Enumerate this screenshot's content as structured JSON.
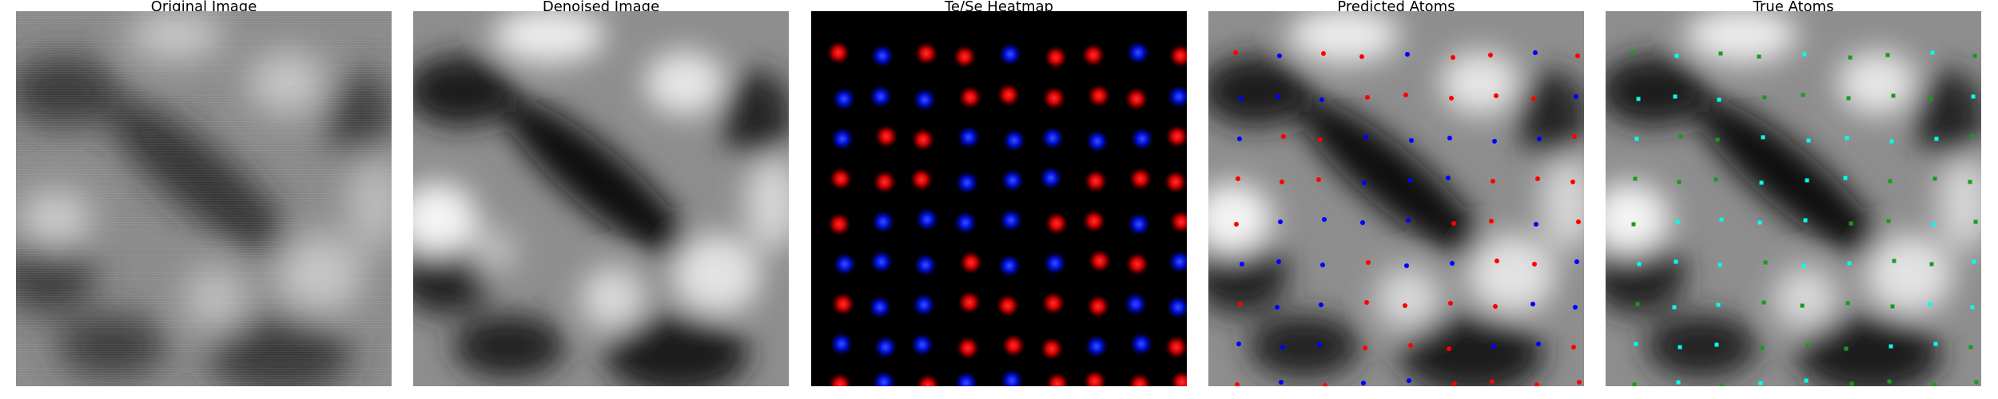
{
  "panels": [
    {
      "title": "Original Image"
    },
    {
      "title": "Denoised Image"
    },
    {
      "title": "Te/Se Heatmap"
    },
    {
      "title": "Predicted Atoms"
    },
    {
      "title": "True Atoms"
    }
  ],
  "colors": {
    "te": "#e60000",
    "se": "#0010f0",
    "pred_te": "#ff0000",
    "pred_se": "#0000ff",
    "true_te": "#00ffee",
    "true_se": "#1a9a1a",
    "background": "#000000"
  }
}
